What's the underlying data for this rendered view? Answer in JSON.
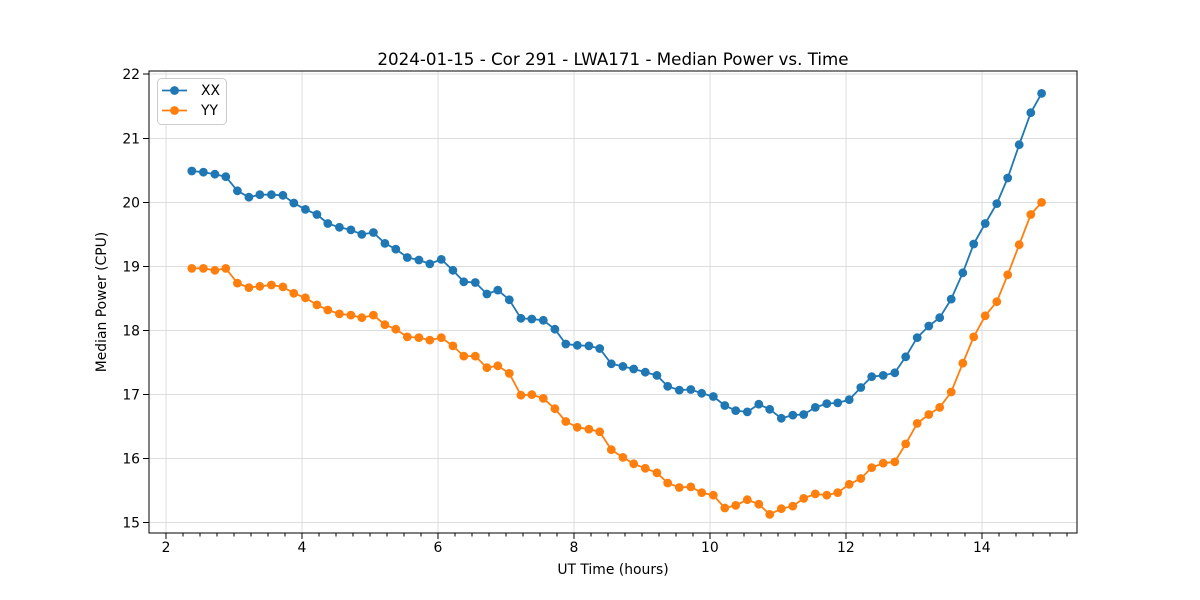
{
  "chart_data": {
    "type": "line",
    "title": "2024-01-15 - Cor 291 - LWA171 - Median Power vs. Time",
    "xlabel": "UT Time (hours)",
    "ylabel": "Median Power (CPU)",
    "xlim": [
      1.75,
      15.4
    ],
    "ylim": [
      14.84,
      22.05
    ],
    "x_ticks": [
      2,
      4,
      6,
      8,
      10,
      12,
      14
    ],
    "x_minor_tick_step": 0.25,
    "y_ticks": [
      15,
      16,
      17,
      18,
      19,
      20,
      21,
      22
    ],
    "grid": true,
    "legend_position": "upper left",
    "marker": "circle",
    "x": [
      2.38,
      2.55,
      2.72,
      2.88,
      3.05,
      3.22,
      3.38,
      3.55,
      3.72,
      3.88,
      4.05,
      4.22,
      4.38,
      4.55,
      4.72,
      4.88,
      5.05,
      5.22,
      5.38,
      5.55,
      5.72,
      5.88,
      6.05,
      6.22,
      6.38,
      6.55,
      6.72,
      6.88,
      7.05,
      7.22,
      7.38,
      7.55,
      7.72,
      7.88,
      8.05,
      8.22,
      8.38,
      8.55,
      8.72,
      8.88,
      9.05,
      9.22,
      9.38,
      9.55,
      9.72,
      9.88,
      10.05,
      10.22,
      10.38,
      10.55,
      10.72,
      10.88,
      11.05,
      11.22,
      11.38,
      11.55,
      11.72,
      11.88,
      12.05,
      12.22,
      12.38,
      12.55,
      12.72,
      12.88,
      13.05,
      13.22,
      13.38,
      13.55,
      13.72,
      13.88,
      14.05,
      14.22,
      14.38,
      14.55,
      14.72,
      14.88
    ],
    "series": [
      {
        "name": "XX",
        "color": "#1f77b4",
        "values": [
          20.49,
          20.47,
          20.44,
          20.4,
          20.18,
          20.08,
          20.12,
          20.12,
          20.11,
          19.99,
          19.89,
          19.81,
          19.67,
          19.61,
          19.57,
          19.5,
          19.53,
          19.36,
          19.27,
          19.14,
          19.1,
          19.04,
          19.11,
          18.94,
          18.76,
          18.75,
          18.57,
          18.63,
          18.48,
          18.19,
          18.18,
          18.16,
          18.02,
          17.79,
          17.77,
          17.76,
          17.72,
          17.48,
          17.44,
          17.4,
          17.35,
          17.3,
          17.13,
          17.07,
          17.08,
          17.02,
          16.97,
          16.83,
          16.75,
          16.73,
          16.85,
          16.77,
          16.63,
          16.68,
          16.69,
          16.8,
          16.86,
          16.87,
          16.92,
          17.11,
          17.28,
          17.3,
          17.34,
          17.59,
          17.89,
          18.07,
          18.2,
          18.49,
          18.9,
          19.35,
          19.67,
          19.98,
          20.38,
          20.9,
          21.4,
          21.7
        ]
      },
      {
        "name": "YY",
        "color": "#ff7f0e",
        "values": [
          18.97,
          18.97,
          18.94,
          18.97,
          18.74,
          18.67,
          18.69,
          18.71,
          18.68,
          18.58,
          18.51,
          18.4,
          18.32,
          18.26,
          18.24,
          18.2,
          18.24,
          18.09,
          18.02,
          17.9,
          17.89,
          17.85,
          17.89,
          17.76,
          17.6,
          17.6,
          17.42,
          17.45,
          17.33,
          16.99,
          17.0,
          16.94,
          16.78,
          16.58,
          16.49,
          16.46,
          16.42,
          16.14,
          16.02,
          15.92,
          15.85,
          15.78,
          15.62,
          15.55,
          15.56,
          15.47,
          15.43,
          15.23,
          15.27,
          15.36,
          15.29,
          15.13,
          15.22,
          15.26,
          15.38,
          15.45,
          15.43,
          15.47,
          15.6,
          15.69,
          15.86,
          15.93,
          15.95,
          16.23,
          16.55,
          16.69,
          16.8,
          17.04,
          17.49,
          17.9,
          18.23,
          18.45,
          18.87,
          19.34,
          19.81,
          20.0
        ]
      }
    ]
  }
}
